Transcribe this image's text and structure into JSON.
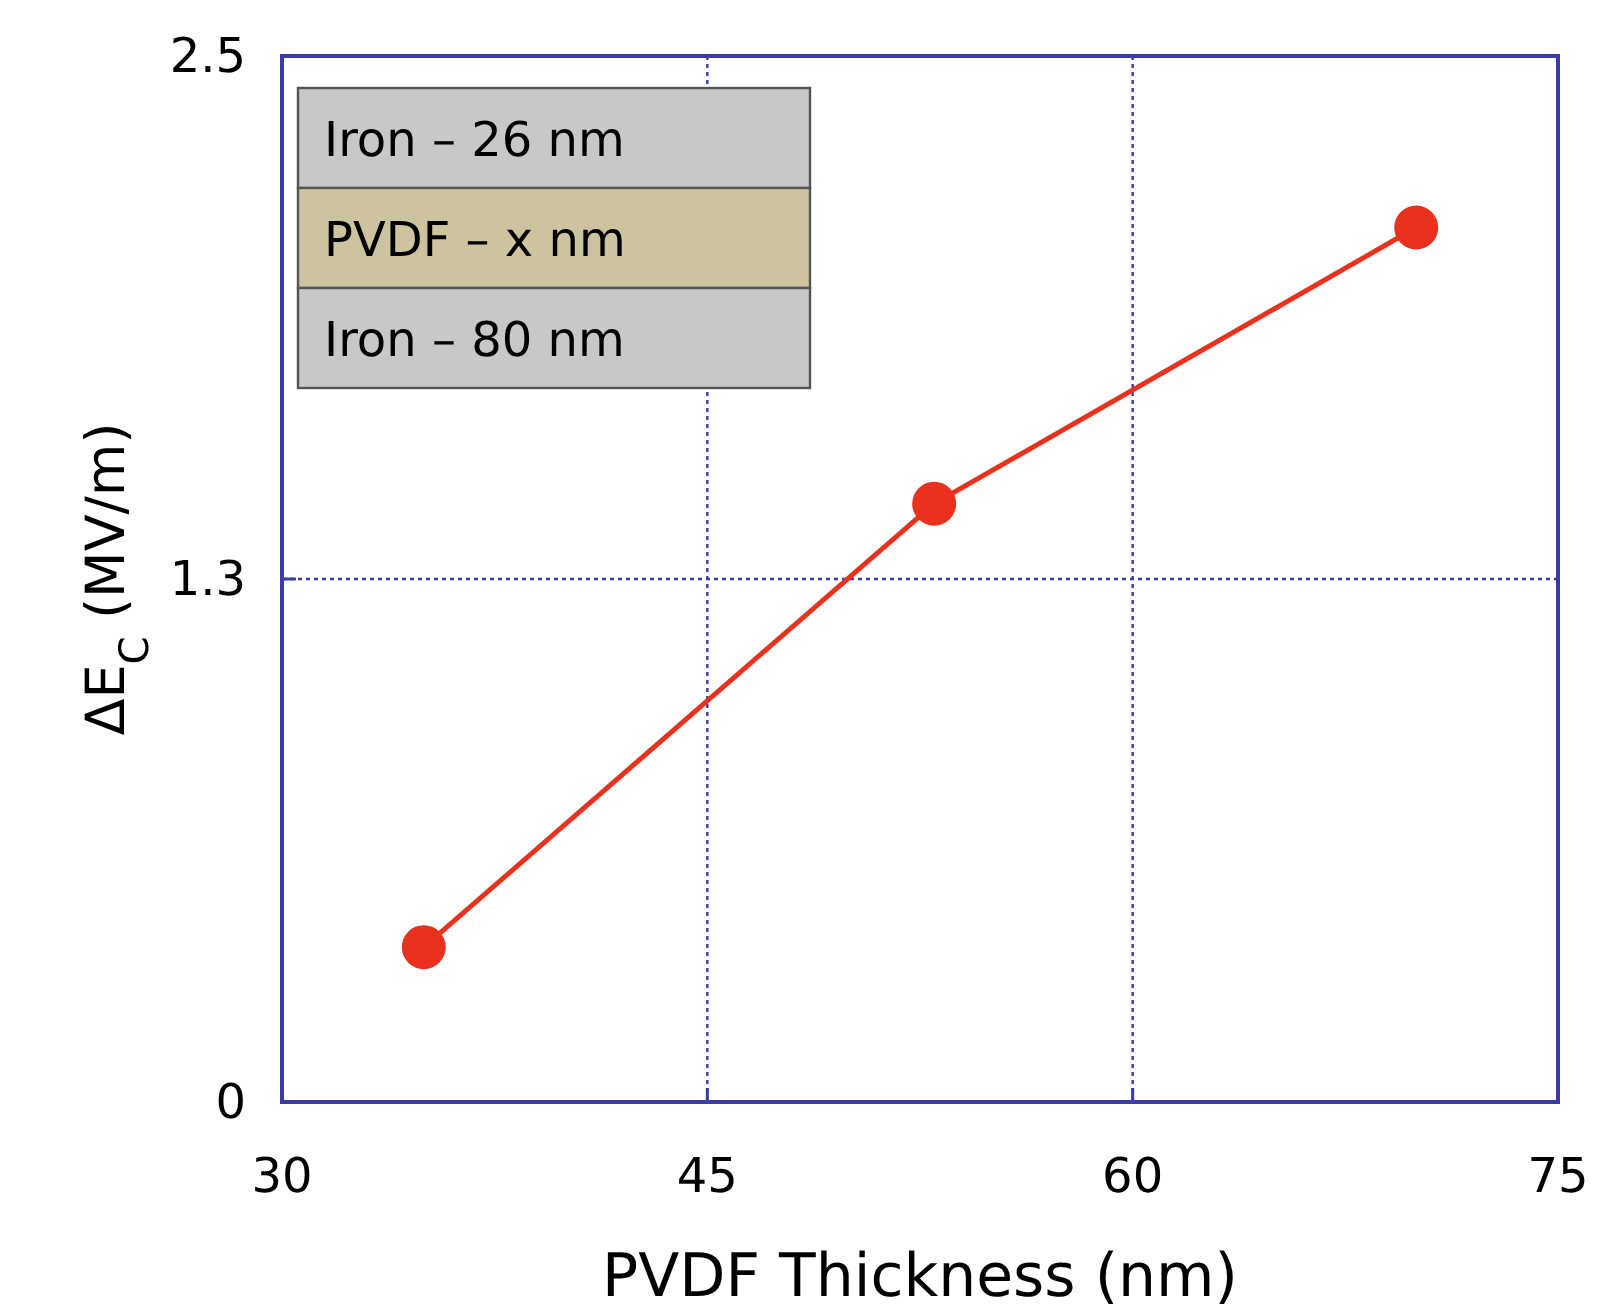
{
  "chart_data": {
    "type": "line",
    "xlabel": "PVDF Thickness (nm)",
    "ylabel": "ΔE$_{C}$ (MV/m)",
    "x": [
      35,
      53,
      70
    ],
    "series": [
      {
        "color": "#e8321e",
        "values": [
          0.37,
          1.43,
          2.09
        ]
      }
    ],
    "xlim": [
      30,
      75
    ],
    "xticks": [
      30,
      45,
      60,
      75
    ],
    "ylim": [
      0,
      2.5
    ],
    "yticks": [
      0,
      {
        "value": 1.25,
        "label": "1.3"
      },
      2.5
    ],
    "grid": true,
    "marker": "circle",
    "line_style": "solid",
    "annotations": [
      "Iron – 26 nm",
      "PVDF – x nm",
      "Iron – 80 nm"
    ]
  }
}
